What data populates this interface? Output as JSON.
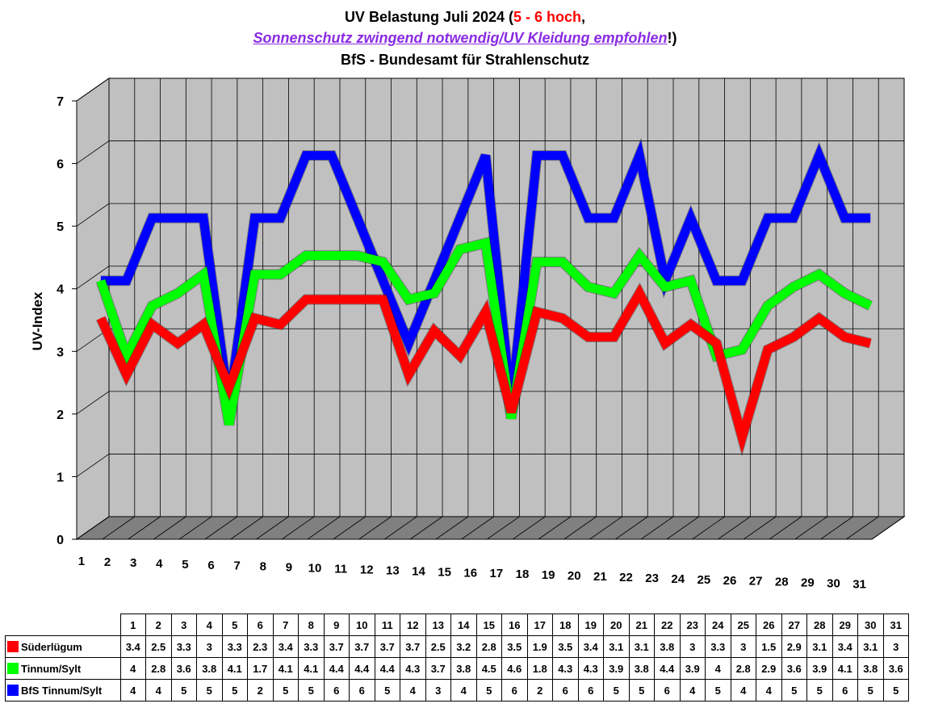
{
  "title": {
    "line1_prefix": "UV Belastung Juli 2024 (",
    "line1_highlight": "5 - 6 hoch",
    "line1_suffix": ",",
    "line2_link": "Sonnenschutz zwingend notwendig/UV Kleidung empfohlen",
    "line2_suffix": "!)",
    "line3": "BfS - Bundesamt für Strahlenschutz"
  },
  "chart_data": {
    "type": "line",
    "title": "UV Belastung Juli 2024 (5 - 6 hoch, Sonnenschutz zwingend notwendig/UV Kleidung empfohlen!) BfS - Bundesamt für Strahlenschutz",
    "xlabel": "",
    "ylabel": "UV-Index",
    "ylim": [
      0,
      7
    ],
    "yticks": [
      "0",
      "1",
      "2",
      "3",
      "4",
      "5",
      "6",
      "7"
    ],
    "categories": [
      "1",
      "2",
      "3",
      "4",
      "5",
      "6",
      "7",
      "8",
      "9",
      "10",
      "11",
      "12",
      "13",
      "14",
      "15",
      "16",
      "17",
      "18",
      "19",
      "20",
      "21",
      "22",
      "23",
      "24",
      "25",
      "26",
      "27",
      "28",
      "29",
      "30",
      "31"
    ],
    "series": [
      {
        "name": "Süderlügum",
        "color": "#ff0000",
        "values": [
          3.4,
          2.5,
          3.3,
          3,
          3.3,
          2.3,
          3.4,
          3.3,
          3.7,
          3.7,
          3.7,
          3.7,
          2.5,
          3.2,
          2.8,
          3.5,
          1.9,
          3.5,
          3.4,
          3.1,
          3.1,
          3.8,
          3,
          3.3,
          3,
          1.5,
          2.9,
          3.1,
          3.4,
          3.1,
          3
        ]
      },
      {
        "name": "Tinnum/Sylt",
        "color": "#00ff00",
        "values": [
          4,
          2.8,
          3.6,
          3.8,
          4.1,
          1.7,
          4.1,
          4.1,
          4.4,
          4.4,
          4.4,
          4.3,
          3.7,
          3.8,
          4.5,
          4.6,
          1.8,
          4.3,
          4.3,
          3.9,
          3.8,
          4.4,
          3.9,
          4,
          2.8,
          2.9,
          3.6,
          3.9,
          4.1,
          3.8,
          3.6
        ]
      },
      {
        "name": "BfS Tinnum/Sylt",
        "color": "#0000ff",
        "values": [
          4,
          4,
          5,
          5,
          5,
          2,
          5,
          5,
          6,
          6,
          5,
          4,
          3,
          4,
          5,
          6,
          2,
          6,
          6,
          5,
          5,
          6,
          4,
          5,
          4,
          4,
          5,
          5,
          6,
          5,
          5
        ]
      }
    ],
    "grid": true,
    "legend": "table-bottom"
  }
}
